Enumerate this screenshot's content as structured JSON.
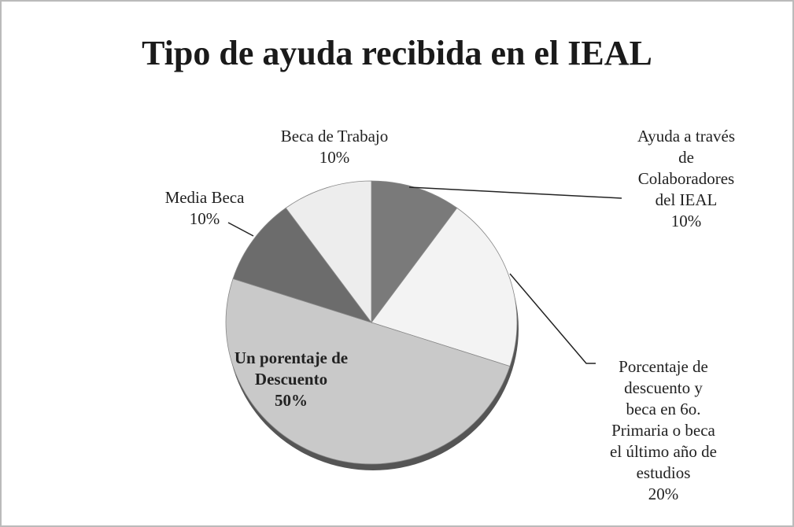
{
  "chart_data": {
    "type": "pie",
    "title": "Tipo de ayuda recibida en el IEAL",
    "categories": [
      "Ayuda a través\nde\nColaboradores\ndel IEAL",
      "Porcentaje de\ndescuento y\nbeca en 6o.\nPrimaria o beca\nel último año de\nestudios",
      "Un porentaje de\nDescuento",
      "Media Beca",
      "Beca de Trabajo"
    ],
    "values": [
      10,
      20,
      50,
      10,
      10
    ],
    "value_labels": [
      "10%",
      "20%",
      "50%",
      "10%",
      "10%"
    ],
    "colors": [
      "#7a7a7a",
      "#f3f3f3",
      "#c9c9c9",
      "#6c6c6c",
      "#ededed"
    ]
  }
}
